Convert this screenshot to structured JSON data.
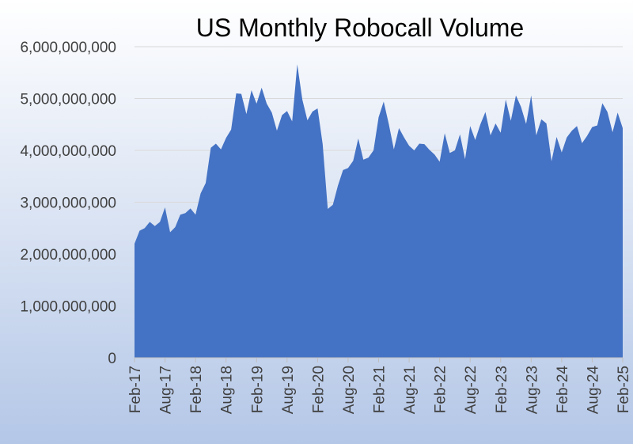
{
  "chart_data": {
    "type": "area",
    "title": "US Monthly Robocall Volume",
    "xlabel": "",
    "ylabel": "",
    "ylim": [
      0,
      6000000000
    ],
    "grid": true,
    "legend": "none",
    "colors": {
      "fill": "#4472C4",
      "background_top": "#ffffff",
      "background_bottom": "#b4c7e7",
      "grid": "#d9d9d9",
      "text": "#000000"
    },
    "y_ticks": [
      {
        "value": 0,
        "label": "0"
      },
      {
        "value": 1000000000,
        "label": "1,000,000,000"
      },
      {
        "value": 2000000000,
        "label": "2,000,000,000"
      },
      {
        "value": 3000000000,
        "label": "3,000,000,000"
      },
      {
        "value": 4000000000,
        "label": "4,000,000,000"
      },
      {
        "value": 5000000000,
        "label": "5,000,000,000"
      },
      {
        "value": 6000000000,
        "label": "6,000,000,000"
      }
    ],
    "x_ticks": [
      {
        "index": 0,
        "label": "Feb-17"
      },
      {
        "index": 6,
        "label": "Aug-17"
      },
      {
        "index": 12,
        "label": "Feb-18"
      },
      {
        "index": 18,
        "label": "Aug-18"
      },
      {
        "index": 24,
        "label": "Feb-19"
      },
      {
        "index": 30,
        "label": "Aug-19"
      },
      {
        "index": 36,
        "label": "Feb-20"
      },
      {
        "index": 42,
        "label": "Aug-20"
      },
      {
        "index": 48,
        "label": "Feb-21"
      },
      {
        "index": 54,
        "label": "Aug-21"
      },
      {
        "index": 60,
        "label": "Feb-22"
      },
      {
        "index": 66,
        "label": "Aug-22"
      },
      {
        "index": 72,
        "label": "Feb-23"
      },
      {
        "index": 78,
        "label": "Aug-23"
      },
      {
        "index": 84,
        "label": "Feb-24"
      },
      {
        "index": 90,
        "label": "Aug-24"
      },
      {
        "index": 96,
        "label": "Feb-25"
      }
    ],
    "series": [
      {
        "name": "Robocall volume",
        "values": [
          2200000000,
          2450000000,
          2500000000,
          2620000000,
          2540000000,
          2620000000,
          2900000000,
          2420000000,
          2520000000,
          2760000000,
          2790000000,
          2880000000,
          2760000000,
          3170000000,
          3370000000,
          4050000000,
          4130000000,
          4020000000,
          4240000000,
          4400000000,
          5100000000,
          5090000000,
          4700000000,
          5160000000,
          4900000000,
          5210000000,
          4900000000,
          4730000000,
          4380000000,
          4680000000,
          4760000000,
          4560000000,
          5660000000,
          4980000000,
          4580000000,
          4750000000,
          4810000000,
          4120000000,
          2870000000,
          2950000000,
          3320000000,
          3620000000,
          3660000000,
          3800000000,
          4230000000,
          3820000000,
          3860000000,
          4000000000,
          4640000000,
          4940000000,
          4510000000,
          4020000000,
          4430000000,
          4250000000,
          4090000000,
          4000000000,
          4130000000,
          4120000000,
          4010000000,
          3920000000,
          3780000000,
          4330000000,
          3950000000,
          4000000000,
          4310000000,
          3830000000,
          4470000000,
          4200000000,
          4500000000,
          4740000000,
          4290000000,
          4520000000,
          4340000000,
          4980000000,
          4570000000,
          5060000000,
          4840000000,
          4510000000,
          5060000000,
          4290000000,
          4600000000,
          4520000000,
          3790000000,
          4260000000,
          3960000000,
          4250000000,
          4380000000,
          4470000000,
          4140000000,
          4280000000,
          4450000000,
          4480000000,
          4910000000,
          4740000000,
          4350000000,
          4730000000,
          4430000000
        ]
      }
    ]
  }
}
